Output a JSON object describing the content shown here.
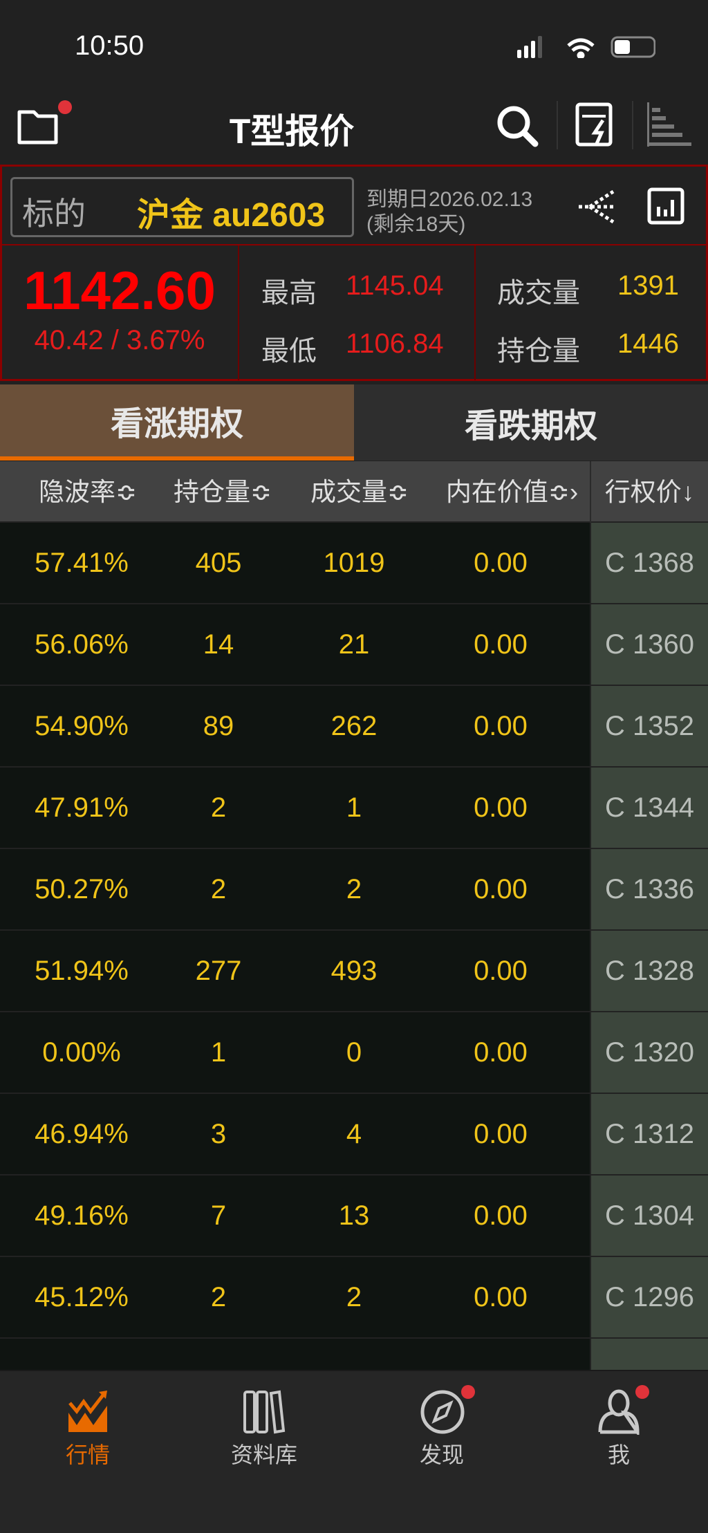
{
  "status_bar": {
    "time": "10:50",
    "battery_level": 0.35
  },
  "header": {
    "title": "T型报价",
    "icons": [
      "folder-icon",
      "search-icon",
      "report-icon",
      "sort-bars-icon"
    ]
  },
  "underlying": {
    "label": "标的",
    "name": "沪金 au2603",
    "expiry": "到期日2026.02.13",
    "remaining": "(剩余18天)",
    "price": "1142.60",
    "change": "40.42 / 3.67%",
    "high_label": "最高",
    "high": "1145.04",
    "low_label": "最低",
    "low": "1106.84",
    "volume_label": "成交量",
    "volume": "1391",
    "oi_label": "持仓量",
    "oi": "1446"
  },
  "tabs": [
    {
      "label": "看涨期权",
      "active": true
    },
    {
      "label": "看跌期权",
      "active": false
    }
  ],
  "columns": [
    "隐波率≎",
    "持仓量≎",
    "成交量≎",
    "内在价值≎›",
    "行权价↓"
  ],
  "rows": [
    {
      "iv": "57.41%",
      "oi": "405",
      "vol": "1019",
      "intrinsic": "0.00",
      "strike": "C 1368"
    },
    {
      "iv": "56.06%",
      "oi": "14",
      "vol": "21",
      "intrinsic": "0.00",
      "strike": "C 1360"
    },
    {
      "iv": "54.90%",
      "oi": "89",
      "vol": "262",
      "intrinsic": "0.00",
      "strike": "C 1352"
    },
    {
      "iv": "47.91%",
      "oi": "2",
      "vol": "1",
      "intrinsic": "0.00",
      "strike": "C 1344"
    },
    {
      "iv": "50.27%",
      "oi": "2",
      "vol": "2",
      "intrinsic": "0.00",
      "strike": "C 1336"
    },
    {
      "iv": "51.94%",
      "oi": "277",
      "vol": "493",
      "intrinsic": "0.00",
      "strike": "C 1328"
    },
    {
      "iv": "0.00%",
      "oi": "1",
      "vol": "0",
      "intrinsic": "0.00",
      "strike": "C 1320"
    },
    {
      "iv": "46.94%",
      "oi": "3",
      "vol": "4",
      "intrinsic": "0.00",
      "strike": "C 1312"
    },
    {
      "iv": "49.16%",
      "oi": "7",
      "vol": "13",
      "intrinsic": "0.00",
      "strike": "C 1304"
    },
    {
      "iv": "45.12%",
      "oi": "2",
      "vol": "2",
      "intrinsic": "0.00",
      "strike": "C 1296"
    }
  ],
  "nav": [
    {
      "label": "行情",
      "active": true
    },
    {
      "label": "资料库"
    },
    {
      "label": "发现",
      "badge": true
    },
    {
      "label": "我",
      "badge": true
    }
  ],
  "colors": {
    "accent": "#e86a00",
    "up": "#ff0000",
    "value": "#f0c419",
    "border": "#8b0000"
  }
}
